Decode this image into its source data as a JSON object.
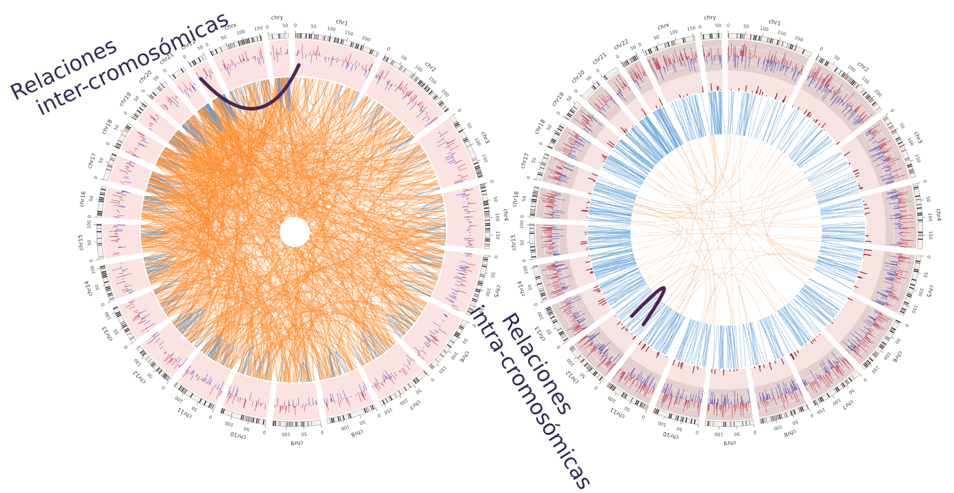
{
  "annotations": {
    "inter": {
      "line1": "Relaciones",
      "line2": "inter-cromosómicas"
    },
    "intra": {
      "line1": "Relaciones",
      "line2": "intra-cromosómicas"
    }
  },
  "chromosomes": [
    {
      "name": "chr1",
      "length": 249,
      "ticks": [
        "0",
        "50",
        "100",
        "150",
        "200"
      ]
    },
    {
      "name": "chr2",
      "length": 243,
      "ticks": [
        "0",
        "50",
        "100",
        "150",
        "200"
      ]
    },
    {
      "name": "chr3",
      "length": 198,
      "ticks": [
        "0",
        "50",
        "100",
        "150"
      ]
    },
    {
      "name": "chr4",
      "length": 191,
      "ticks": [
        "0",
        "50",
        "100",
        "150"
      ]
    },
    {
      "name": "chr5",
      "length": 181,
      "ticks": [
        "0",
        "50",
        "100",
        "150"
      ]
    },
    {
      "name": "chr6",
      "length": 171,
      "ticks": [
        "0",
        "50",
        "100",
        "150"
      ]
    },
    {
      "name": "chr7",
      "length": 159,
      "ticks": [
        "0",
        "50",
        "100",
        "150"
      ]
    },
    {
      "name": "chr8",
      "length": 146,
      "ticks": [
        "0",
        "50",
        "100"
      ]
    },
    {
      "name": "chr9",
      "length": 141,
      "ticks": [
        "0",
        "50",
        "100"
      ]
    },
    {
      "name": "chr10",
      "length": 136,
      "ticks": [
        "0",
        "50",
        "100"
      ]
    },
    {
      "name": "chr11",
      "length": 135,
      "ticks": [
        "0",
        "50",
        "100"
      ]
    },
    {
      "name": "chr12",
      "length": 134,
      "ticks": [
        "0",
        "50",
        "100"
      ]
    },
    {
      "name": "chr13",
      "length": 115,
      "ticks": [
        "0",
        "50",
        "100"
      ]
    },
    {
      "name": "chr14",
      "length": 107,
      "ticks": [
        "0",
        "50",
        "100"
      ]
    },
    {
      "name": "chr15",
      "length": 103,
      "ticks": [
        "0",
        "50",
        "100"
      ]
    },
    {
      "name": "chr16",
      "length": 90,
      "ticks": [
        "0",
        "50"
      ]
    },
    {
      "name": "chr17",
      "length": 81,
      "ticks": [
        "0",
        "50"
      ]
    },
    {
      "name": "chr18",
      "length": 78,
      "ticks": [
        "0",
        "50"
      ]
    },
    {
      "name": "chr19",
      "length": 59,
      "ticks": [
        "0",
        "50"
      ]
    },
    {
      "name": "chr20",
      "length": 63,
      "ticks": [
        "0",
        "50"
      ]
    },
    {
      "name": "chr21",
      "length": 48,
      "ticks": [
        "0"
      ]
    },
    {
      "name": "chr22",
      "length": 51,
      "ticks": [
        "0",
        "50"
      ]
    },
    {
      "name": "chrx",
      "length": 155,
      "ticks": [
        "0",
        "50",
        "100",
        "150"
      ]
    },
    {
      "name": "chry",
      "length": 59,
      "ticks": [
        "0",
        "50"
      ]
    }
  ],
  "colors": {
    "inter_link": "#ff8c2e",
    "intra_link": "#5b9bd5",
    "highlight_link": "#4f2550",
    "track_bg_left": "#fbe3e1",
    "track_bg_right_a": "#e3cfcd",
    "track_bg_right_b": "#f6e4e2",
    "annotation_text": "#2e2c5a",
    "band_dark": "#2a2a2a",
    "band_stalk": "#b03a3a"
  },
  "panels": [
    {
      "id": "left",
      "dominant_links": "inter",
      "highlight": {
        "from": "chr22",
        "to": "chr1"
      }
    },
    {
      "id": "right",
      "dominant_links": "intra",
      "highlight": {
        "from": "chr13",
        "to": "chr13"
      }
    }
  ]
}
